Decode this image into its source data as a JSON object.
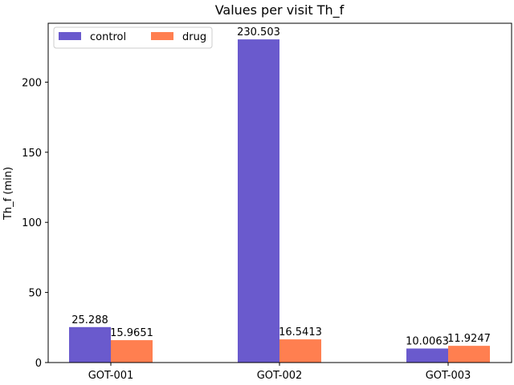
{
  "chart_data": {
    "type": "bar",
    "title": "Values per visit Th_f",
    "xlabel": "",
    "ylabel": "Th_f (min)",
    "categories": [
      "GOT-001",
      "GOT-002",
      "GOT-003"
    ],
    "series": [
      {
        "name": "control",
        "color": "#6a5acd",
        "values": [
          25.288,
          230.503,
          10.0063
        ],
        "labels": [
          "25.288",
          "230.503",
          "10.0063"
        ]
      },
      {
        "name": "drug",
        "color": "#ff7f50",
        "values": [
          15.9651,
          16.5413,
          11.9247
        ],
        "labels": [
          "15.9651",
          "16.5413",
          "11.9247"
        ]
      }
    ],
    "ylim": [
      0,
      242
    ],
    "yticks": [
      0,
      50,
      100,
      150,
      200
    ],
    "grid": false,
    "legend": "top-left, 2 columns"
  }
}
